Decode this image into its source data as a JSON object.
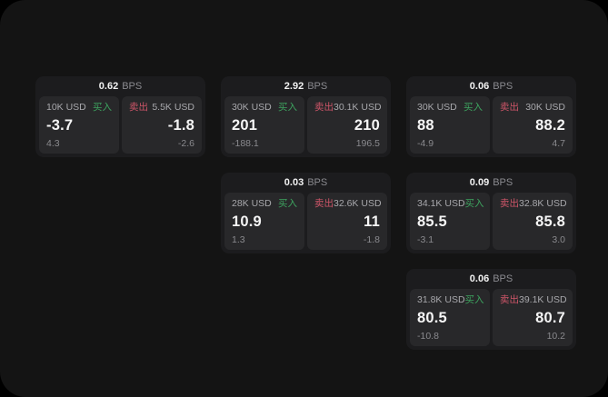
{
  "labels": {
    "bps_unit": "BPS",
    "buy": "买入",
    "sell": "卖出"
  },
  "colors": {
    "buy_accent": "#3da35f",
    "sell_accent": "#cd5568",
    "background": "#141414",
    "card": "#1c1c1e",
    "panel": "#28282a"
  },
  "cards": [
    {
      "row": 1,
      "col": 1,
      "bps": "0.62",
      "buy": {
        "amount": "10K USD",
        "price": "-3.7",
        "change": "4.3"
      },
      "sell": {
        "amount": "5.5K USD",
        "price": "-1.8",
        "change": "-2.6"
      }
    },
    {
      "row": 1,
      "col": 2,
      "bps": "2.92",
      "buy": {
        "amount": "30K USD",
        "price": "201",
        "change": "-188.1"
      },
      "sell": {
        "amount": "30.1K USD",
        "price": "210",
        "change": "196.5"
      }
    },
    {
      "row": 1,
      "col": 3,
      "bps": "0.06",
      "buy": {
        "amount": "30K USD",
        "price": "88",
        "change": "-4.9"
      },
      "sell": {
        "amount": "30K USD",
        "price": "88.2",
        "change": "4.7"
      }
    },
    {
      "row": 2,
      "col": 2,
      "bps": "0.03",
      "buy": {
        "amount": "28K USD",
        "price": "10.9",
        "change": "1.3"
      },
      "sell": {
        "amount": "32.6K USD",
        "price": "11",
        "change": "-1.8"
      }
    },
    {
      "row": 2,
      "col": 3,
      "bps": "0.09",
      "buy": {
        "amount": "34.1K USD",
        "price": "85.5",
        "change": "-3.1"
      },
      "sell": {
        "amount": "32.8K USD",
        "price": "85.8",
        "change": "3.0"
      }
    },
    {
      "row": 3,
      "col": 3,
      "bps": "0.06",
      "buy": {
        "amount": "31.8K USD",
        "price": "80.5",
        "change": "-10.8"
      },
      "sell": {
        "amount": "39.1K USD",
        "price": "80.7",
        "change": "10.2"
      }
    }
  ]
}
